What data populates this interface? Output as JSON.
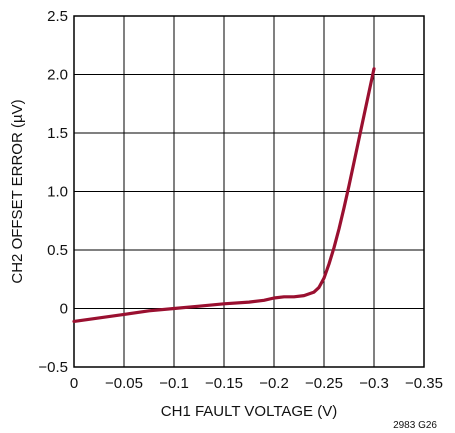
{
  "chart_data": {
    "type": "line",
    "title": "",
    "xlabel": "CH1 FAULT VOLTAGE (V)",
    "ylabel": "CH2 OFFSET ERROR (µV)",
    "xlim": [
      0,
      -0.35
    ],
    "ylim": [
      -0.5,
      2.5
    ],
    "x_ticks": [
      0,
      -0.05,
      -0.1,
      -0.15,
      -0.2,
      -0.25,
      -0.3,
      -0.35
    ],
    "x_tick_labels": [
      "0",
      "−0.05",
      "−0.1",
      "−0.15",
      "−0.2",
      "−0.25",
      "−0.3",
      "−0.35"
    ],
    "y_ticks": [
      -0.5,
      0,
      0.5,
      1.0,
      1.5,
      2.0,
      2.5
    ],
    "y_tick_labels": [
      "−0.5",
      "0",
      "0.5",
      "1.0",
      "1.5",
      "2.0",
      "2.5"
    ],
    "grid": true,
    "note": "2983 G26",
    "line_color": "#9a1030",
    "series": [
      {
        "x": [
          0,
          -0.025,
          -0.05,
          -0.075,
          -0.1,
          -0.125,
          -0.15,
          -0.175,
          -0.19,
          -0.2,
          -0.21,
          -0.22,
          -0.23,
          -0.24,
          -0.245,
          -0.25,
          -0.255,
          -0.26,
          -0.265,
          -0.27,
          -0.275,
          -0.28,
          -0.285,
          -0.29,
          -0.295,
          -0.3
        ],
        "y": [
          -0.11,
          -0.08,
          -0.05,
          -0.02,
          0.0,
          0.02,
          0.04,
          0.055,
          0.07,
          0.09,
          0.1,
          0.1,
          0.11,
          0.14,
          0.18,
          0.26,
          0.38,
          0.52,
          0.68,
          0.86,
          1.05,
          1.25,
          1.45,
          1.65,
          1.85,
          2.05
        ]
      }
    ]
  }
}
